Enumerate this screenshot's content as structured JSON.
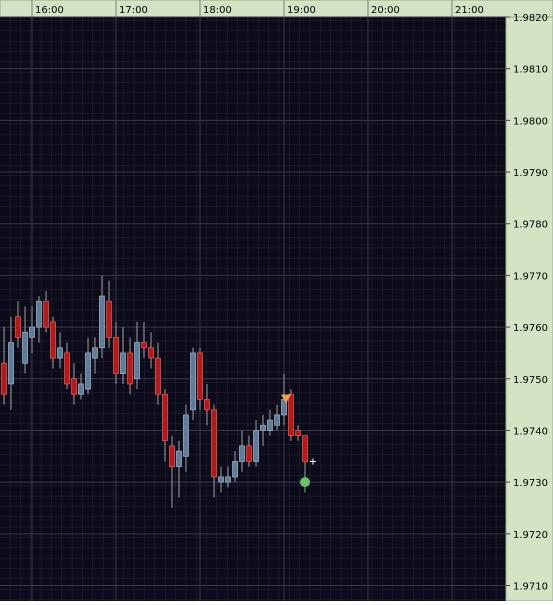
{
  "chart_data": {
    "type": "candlestick",
    "x": [
      15.667,
      15.75,
      15.833,
      15.917,
      16,
      16.083,
      16.167,
      16.25,
      16.333,
      16.417,
      16.5,
      16.583,
      16.667,
      16.75,
      16.833,
      16.917,
      17,
      17.083,
      17.167,
      17.25,
      17.333,
      17.417,
      17.5,
      17.583,
      17.667,
      17.75,
      17.833,
      17.917,
      18,
      18.083,
      18.167,
      18.25,
      18.333,
      18.417,
      18.5,
      18.583,
      18.667,
      18.75,
      18.833,
      18.917,
      19,
      19.083,
      19.167,
      19.25
    ],
    "open": [
      1.9753,
      1.9749,
      1.9762,
      1.9753,
      1.9758,
      1.976,
      1.9765,
      1.9761,
      1.9754,
      1.9755,
      1.975,
      1.9747,
      1.9748,
      1.9754,
      1.9756,
      1.9765,
      1.9758,
      1.9751,
      1.9755,
      1.975,
      1.9757,
      1.9756,
      1.9754,
      1.9747,
      1.9737,
      1.9733,
      1.9735,
      1.9744,
      1.9755,
      1.9746,
      1.9744,
      1.973,
      1.973,
      1.9731,
      1.9734,
      1.9737,
      1.9734,
      1.974,
      1.974,
      1.9741,
      1.9743,
      1.9747,
      1.974,
      1.9739
    ],
    "high": [
      1.976,
      1.9762,
      1.9765,
      1.9764,
      1.9764,
      1.9766,
      1.9767,
      1.9762,
      1.9759,
      1.9757,
      1.9753,
      1.9751,
      1.9758,
      1.9758,
      1.977,
      1.9769,
      1.9761,
      1.976,
      1.9758,
      1.9761,
      1.9761,
      1.9759,
      1.9757,
      1.9748,
      1.9739,
      1.9738,
      1.9745,
      1.9756,
      1.9756,
      1.9749,
      1.9745,
      1.9733,
      1.9733,
      1.9736,
      1.974,
      1.9739,
      1.9742,
      1.9743,
      1.9744,
      1.9745,
      1.9751,
      1.9748,
      1.9741,
      1.9739
    ],
    "low": [
      1.9745,
      1.9744,
      1.9756,
      1.9751,
      1.9755,
      1.9757,
      1.9759,
      1.9752,
      1.9752,
      1.9748,
      1.9745,
      1.9746,
      1.9747,
      1.9751,
      1.9754,
      1.9756,
      1.9749,
      1.9749,
      1.9747,
      1.9748,
      1.9754,
      1.9752,
      1.9745,
      1.9734,
      1.9725,
      1.9727,
      1.9732,
      1.9742,
      1.9744,
      1.9741,
      1.9727,
      1.9728,
      1.9729,
      1.973,
      1.9732,
      1.9733,
      1.9733,
      1.9737,
      1.9739,
      1.974,
      1.9741,
      1.9738,
      1.9738,
      1.9728
    ],
    "close": [
      1.9747,
      1.9757,
      1.9758,
      1.9759,
      1.976,
      1.9765,
      1.976,
      1.9754,
      1.9756,
      1.9749,
      1.9747,
      1.9749,
      1.9755,
      1.9756,
      1.9766,
      1.9758,
      1.9751,
      1.9755,
      1.9749,
      1.9757,
      1.9756,
      1.9754,
      1.9747,
      1.9738,
      1.9733,
      1.9736,
      1.9743,
      1.9755,
      1.9746,
      1.9744,
      1.9731,
      1.9731,
      1.9731,
      1.9734,
      1.9737,
      1.9734,
      1.974,
      1.9741,
      1.9742,
      1.9743,
      1.9746,
      1.9739,
      1.9739,
      1.9734
    ],
    "up_color": "#5f7d99",
    "down_color": "#b01c1c",
    "markers": [
      {
        "shape": "triangle",
        "x": 19.024,
        "y": 1.9746,
        "color": "#f0a040"
      },
      {
        "shape": "circle",
        "x": 19.25,
        "y": 1.973,
        "color": "#6cc06c"
      },
      {
        "shape": "cross",
        "x": 19.345,
        "y": 1.9734,
        "color": "#ffffff"
      }
    ],
    "xlim": [
      15.619,
      21.643
    ],
    "xticks": [
      {
        "value": 16,
        "label": "16:00"
      },
      {
        "value": 17,
        "label": "17:00"
      },
      {
        "value": 18,
        "label": "18:00"
      },
      {
        "value": 19,
        "label": "19:00"
      },
      {
        "value": 20,
        "label": "20:00"
      },
      {
        "value": 21,
        "label": "21:00"
      }
    ],
    "ylim": [
      1.9707,
      1.982
    ],
    "yticks": [
      {
        "value": 1.971,
        "label": "1.9710"
      },
      {
        "value": 1.972,
        "label": "1.9720"
      },
      {
        "value": 1.973,
        "label": "1.9730"
      },
      {
        "value": 1.974,
        "label": "1.9740"
      },
      {
        "value": 1.975,
        "label": "1.9750"
      },
      {
        "value": 1.976,
        "label": "1.9760"
      },
      {
        "value": 1.977,
        "label": "1.9770"
      },
      {
        "value": 1.978,
        "label": "1.9780"
      },
      {
        "value": 1.979,
        "label": "1.9790"
      },
      {
        "value": 1.98,
        "label": "1.9800"
      },
      {
        "value": 1.981,
        "label": "1.9810"
      },
      {
        "value": 1.982,
        "label": "1.9820"
      }
    ],
    "grid": true
  }
}
